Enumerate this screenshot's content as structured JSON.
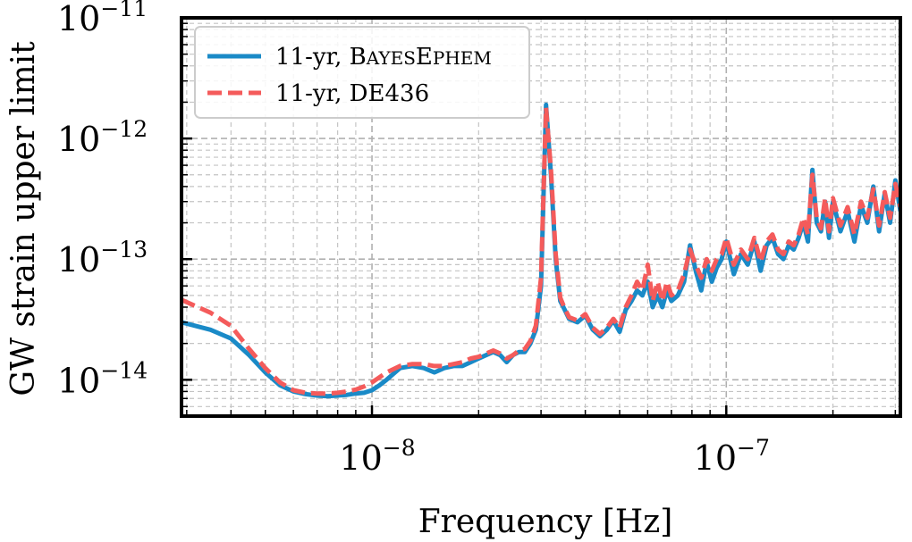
{
  "chart_data": {
    "type": "line",
    "title": "",
    "xlabel": "Frequency [Hz]",
    "ylabel": "GW strain upper limit",
    "xscale": "log",
    "yscale": "log",
    "xlim": [
      2.9e-09,
      3.1e-07
    ],
    "ylim": [
      5e-15,
      1e-11
    ],
    "grid": true,
    "legend_position": "top-left",
    "x_ticks": [
      {
        "label_base": "10",
        "label_exp": "−8"
      },
      {
        "label_base": "10",
        "label_exp": "−7"
      }
    ],
    "y_ticks": [
      {
        "label_base": "10",
        "label_exp": "−14"
      },
      {
        "label_base": "10",
        "label_exp": "−13"
      },
      {
        "label_base": "10",
        "label_exp": "−12"
      },
      {
        "label_base": "10",
        "label_exp": "−11"
      }
    ],
    "series": [
      {
        "name": "11-yr, BayesEphem",
        "legend_prefix": "11-yr, ",
        "legend_b1": "B",
        "legend_s1": "AYES",
        "legend_b2": "E",
        "legend_s2": "PHEM",
        "color": "#1a8ac7",
        "style": "solid",
        "x": [
          2.9e-09,
          3.5e-09,
          4e-09,
          4.5e-09,
          5e-09,
          5.5e-09,
          6e-09,
          6.5e-09,
          7e-09,
          7.5e-09,
          8e-09,
          8.5e-09,
          9e-09,
          9.5e-09,
          1e-08,
          1.05e-08,
          1.1e-08,
          1.2e-08,
          1.3e-08,
          1.4e-08,
          1.5e-08,
          1.6e-08,
          1.7e-08,
          1.8e-08,
          1.9e-08,
          2e-08,
          2.1e-08,
          2.2e-08,
          2.3e-08,
          2.4e-08,
          2.5e-08,
          2.6e-08,
          2.7e-08,
          2.8e-08,
          2.9e-08,
          3e-08,
          3.1e-08,
          3.2e-08,
          3.3e-08,
          3.4e-08,
          3.5e-08,
          3.6e-08,
          3.8e-08,
          4e-08,
          4.2e-08,
          4.4e-08,
          4.6e-08,
          4.8e-08,
          5e-08,
          5.2e-08,
          5.4e-08,
          5.6e-08,
          5.8e-08,
          6e-08,
          6.2e-08,
          6.4e-08,
          6.6e-08,
          6.8e-08,
          7e-08,
          7.3e-08,
          7.6e-08,
          7.9e-08,
          8.2e-08,
          8.5e-08,
          8.8e-08,
          9.1e-08,
          9.4e-08,
          9.7e-08,
          1e-07,
          1.05e-07,
          1.1e-07,
          1.15e-07,
          1.2e-07,
          1.25e-07,
          1.3e-07,
          1.35e-07,
          1.4e-07,
          1.45e-07,
          1.5e-07,
          1.55e-07,
          1.6e-07,
          1.65e-07,
          1.7e-07,
          1.75e-07,
          1.8e-07,
          1.85e-07,
          1.9e-07,
          1.95e-07,
          2e-07,
          2.1e-07,
          2.2e-07,
          2.3e-07,
          2.4e-07,
          2.5e-07,
          2.6e-07,
          2.7e-07,
          2.8e-07,
          2.9e-07,
          3e-07,
          3.1e-07
        ],
        "y": [
          3e-14,
          2.6e-14,
          2.2e-14,
          1.6e-14,
          1.15e-14,
          9e-15,
          8e-15,
          7.6e-15,
          7.4e-15,
          7.3e-15,
          7.4e-15,
          7.5e-15,
          7.7e-15,
          7.8e-15,
          8.2e-15,
          9e-15,
          1e-14,
          1.25e-14,
          1.3e-14,
          1.25e-14,
          1.15e-14,
          1.25e-14,
          1.3e-14,
          1.3e-14,
          1.4e-14,
          1.5e-14,
          1.6e-14,
          1.7e-14,
          1.6e-14,
          1.4e-14,
          1.6e-14,
          1.7e-14,
          1.7e-14,
          2e-14,
          2.6e-14,
          6e-14,
          1.9e-12,
          5e-13,
          1e-13,
          4.5e-14,
          3.8e-14,
          3.2e-14,
          3e-14,
          3.4e-14,
          2.6e-14,
          2.3e-14,
          2.6e-14,
          3.1e-14,
          2.5e-14,
          3.8e-14,
          4.5e-14,
          5.5e-14,
          5e-14,
          6.5e-14,
          4e-14,
          5e-14,
          4e-14,
          5.5e-14,
          4.5e-14,
          5e-14,
          6.5e-14,
          1.3e-13,
          8e-14,
          5.5e-14,
          9.5e-14,
          6.5e-14,
          8.5e-14,
          1e-13,
          1.4e-13,
          7.5e-14,
          1.1e-13,
          9e-14,
          1.4e-13,
          8e-14,
          1.3e-13,
          1.5e-13,
          1.1e-13,
          1e-13,
          1.3e-13,
          1.2e-13,
          1.5e-13,
          2e-13,
          1.4e-13,
          5.5e-13,
          2e-13,
          1.7e-13,
          3e-13,
          1.5e-13,
          3e-13,
          1.7e-13,
          2.5e-13,
          1.4e-13,
          2.8e-13,
          2e-13,
          4e-13,
          1.7e-13,
          3.5e-13,
          2e-13,
          4.5e-13,
          2.5e-13
        ]
      },
      {
        "name": "11-yr, DE436",
        "legend_prefix": "11-yr, DE436",
        "color": "#f45b5b",
        "style": "dashed",
        "x": [
          2.9e-09,
          3.5e-09,
          4e-09,
          4.5e-09,
          5e-09,
          5.5e-09,
          6e-09,
          6.5e-09,
          7e-09,
          7.5e-09,
          8e-09,
          8.5e-09,
          9e-09,
          9.5e-09,
          1e-08,
          1.05e-08,
          1.1e-08,
          1.2e-08,
          1.3e-08,
          1.4e-08,
          1.5e-08,
          1.6e-08,
          1.7e-08,
          1.8e-08,
          1.9e-08,
          2e-08,
          2.1e-08,
          2.2e-08,
          2.3e-08,
          2.4e-08,
          2.5e-08,
          2.6e-08,
          2.7e-08,
          2.8e-08,
          2.9e-08,
          3e-08,
          3.1e-08,
          3.2e-08,
          3.3e-08,
          3.4e-08,
          3.5e-08,
          3.6e-08,
          3.8e-08,
          4e-08,
          4.2e-08,
          4.4e-08,
          4.6e-08,
          4.8e-08,
          5e-08,
          5.2e-08,
          5.4e-08,
          5.6e-08,
          5.8e-08,
          6e-08,
          6.2e-08,
          6.4e-08,
          6.6e-08,
          6.8e-08,
          7e-08,
          7.3e-08,
          7.6e-08,
          7.9e-08,
          8.2e-08,
          8.5e-08,
          8.8e-08,
          9.1e-08,
          9.4e-08,
          9.7e-08,
          1e-07,
          1.05e-07,
          1.1e-07,
          1.15e-07,
          1.2e-07,
          1.25e-07,
          1.3e-07,
          1.35e-07,
          1.4e-07,
          1.45e-07,
          1.5e-07,
          1.55e-07,
          1.6e-07,
          1.65e-07,
          1.7e-07,
          1.75e-07,
          1.8e-07,
          1.85e-07,
          1.9e-07,
          1.95e-07,
          2e-07,
          2.1e-07,
          2.2e-07,
          2.3e-07,
          2.4e-07,
          2.5e-07,
          2.6e-07,
          2.7e-07,
          2.8e-07,
          2.9e-07,
          3e-07,
          3.1e-07
        ],
        "y": [
          4.6e-14,
          3.6e-14,
          2.8e-14,
          1.8e-14,
          1.25e-14,
          9.5e-15,
          8.2e-15,
          7.8e-15,
          7.7e-15,
          7.7e-15,
          7.8e-15,
          8e-15,
          8.3e-15,
          8.8e-15,
          9.5e-15,
          1.05e-14,
          1.15e-14,
          1.3e-14,
          1.35e-14,
          1.35e-14,
          1.3e-14,
          1.3e-14,
          1.35e-14,
          1.4e-14,
          1.5e-14,
          1.55e-14,
          1.65e-14,
          1.75e-14,
          1.65e-14,
          1.5e-14,
          1.6e-14,
          1.75e-14,
          1.8e-14,
          2.1e-14,
          2.8e-14,
          7e-14,
          1.8e-12,
          5.5e-13,
          1.1e-13,
          4.8e-14,
          3.9e-14,
          3.3e-14,
          3.1e-14,
          3.5e-14,
          2.7e-14,
          2.4e-14,
          2.7e-14,
          3.2e-14,
          2.7e-14,
          4e-14,
          5e-14,
          6.5e-14,
          5.5e-14,
          9e-14,
          4.5e-14,
          6.5e-14,
          4.5e-14,
          6.5e-14,
          5e-14,
          5.5e-14,
          7.5e-14,
          1.2e-13,
          9e-14,
          7e-14,
          1e-13,
          8e-14,
          1e-13,
          1.1e-13,
          1.5e-13,
          9e-14,
          1.2e-13,
          1e-13,
          1.5e-13,
          9.5e-14,
          1.4e-13,
          1.6e-13,
          1.2e-13,
          1.1e-13,
          1.4e-13,
          1.3e-13,
          1.6e-13,
          2.2e-13,
          1.6e-13,
          5e-13,
          2.2e-13,
          1.8e-13,
          3.2e-13,
          1.7e-13,
          3.2e-13,
          1.9e-13,
          2.7e-13,
          1.6e-13,
          3e-13,
          2.2e-13,
          3.8e-13,
          1.9e-13,
          3.6e-13,
          2.2e-13,
          4.2e-13,
          2.7e-13
        ]
      }
    ]
  }
}
